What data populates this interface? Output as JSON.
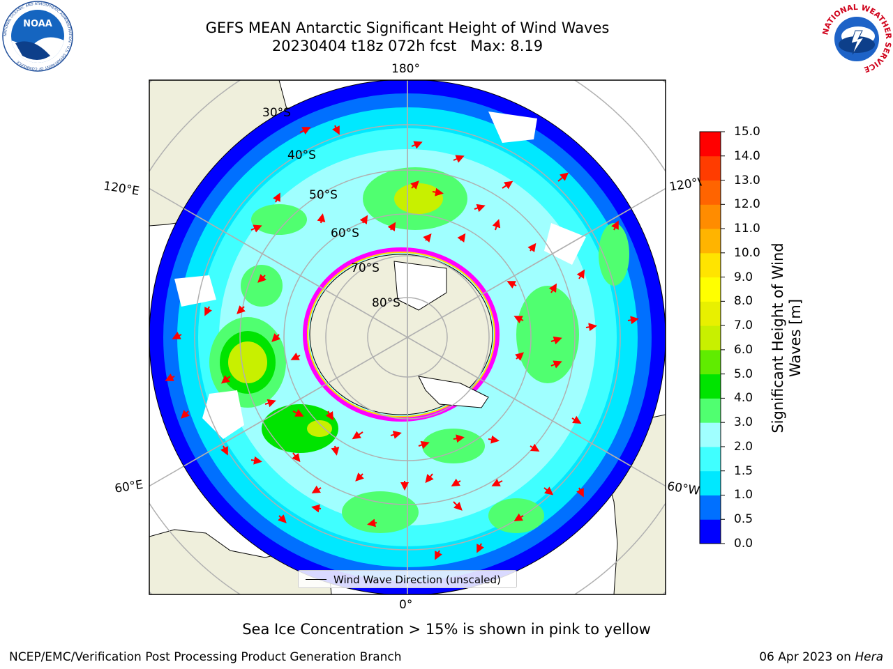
{
  "header": {
    "title_line1": "GEFS MEAN Antarctic Significant Height of Wind Waves",
    "title_line2": "20230404 t18z 072h fcst   Max: 8.19",
    "noaa_logo_text": "NOAA",
    "noaa_ring_text": "NATIONAL OCEANIC AND ATMOSPHERIC ADMINISTRATION · U.S. DEPARTMENT OF COMMERCE",
    "nws_ring_text": "NATIONAL WEATHER SERVICE"
  },
  "map": {
    "projection": "south polar stereographic",
    "longitude_labels": {
      "top": "180°",
      "bottom": "0°",
      "upper_left": "120°E",
      "upper_right": "120°W",
      "lower_left": "60°E",
      "lower_right": "60°W"
    },
    "latitude_labels": [
      "30°S",
      "40°S",
      "50°S",
      "60°S",
      "70°S",
      "80°S"
    ],
    "legend_label": "Wind Wave Direction (unscaled)",
    "colors": {
      "land": "#efefdc",
      "sea_ice_pink": "#ff00ff",
      "sea_ice_yellow": "#ffd700",
      "arrows": "#ff0000",
      "grid": "#b0b0b0"
    }
  },
  "colorbar": {
    "title": "Significant Height of Wind Waves [m]",
    "tick_labels": [
      "0.0",
      "0.5",
      "1.0",
      "1.5",
      "2.0",
      "3.0",
      "4.0",
      "5.0",
      "6.0",
      "7.0",
      "8.0",
      "9.0",
      "10.0",
      "11.0",
      "12.0",
      "13.0",
      "14.0",
      "15.0"
    ],
    "colors": [
      "#0000ff",
      "#0070ff",
      "#00e8ff",
      "#40ffff",
      "#a0ffff",
      "#50ff70",
      "#00e400",
      "#60ec00",
      "#c8f000",
      "#e8f000",
      "#ffff00",
      "#ffe400",
      "#ffb400",
      "#ff8c00",
      "#ff6400",
      "#ff3c00",
      "#ff0000"
    ]
  },
  "note": "Sea Ice Concentration > 15% is shown in pink to yellow",
  "footer": {
    "left": "NCEP/EMC/Verification Post Processing Product Generation Branch",
    "right_date": "06 Apr 2023 on",
    "right_host": "Hera"
  }
}
